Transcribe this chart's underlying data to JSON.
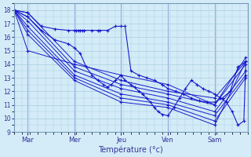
{
  "title": "",
  "xlabel": "Température (°c)",
  "ylabel": "",
  "bg_color": "#d4ecf7",
  "grid_color": "#a8cce0",
  "line_color": "#1a1acc",
  "ylim": [
    9,
    18.5
  ],
  "xlim": [
    0,
    120
  ],
  "day_labels": [
    "Mar",
    "Mer",
    "Jeu",
    "Ven",
    "Sam"
  ],
  "day_positions": [
    7,
    31,
    55,
    79,
    103
  ],
  "series": [
    {
      "x": [
        0,
        7,
        31,
        55,
        79,
        103,
        119
      ],
      "y": [
        18.0,
        17.8,
        14.2,
        12.8,
        12.0,
        11.5,
        14.2
      ]
    },
    {
      "x": [
        0,
        7,
        31,
        55,
        79,
        103,
        119
      ],
      "y": [
        18.0,
        17.5,
        13.8,
        12.5,
        11.8,
        11.0,
        14.0
      ]
    },
    {
      "x": [
        0,
        7,
        31,
        55,
        79,
        103,
        119
      ],
      "y": [
        18.0,
        17.2,
        13.5,
        12.2,
        11.5,
        10.5,
        13.5
      ]
    },
    {
      "x": [
        0,
        7,
        31,
        55,
        79,
        103,
        119
      ],
      "y": [
        18.0,
        16.8,
        13.2,
        11.8,
        11.2,
        10.2,
        13.2
      ]
    },
    {
      "x": [
        0,
        7,
        31,
        55,
        79,
        103,
        119
      ],
      "y": [
        18.0,
        16.5,
        13.0,
        11.5,
        11.0,
        9.8,
        13.0
      ]
    },
    {
      "x": [
        0,
        7,
        31,
        55,
        79,
        103,
        119
      ],
      "y": [
        18.0,
        15.0,
        14.0,
        13.2,
        12.5,
        11.0,
        14.5
      ]
    },
    {
      "x": [
        0,
        7,
        31,
        55,
        79,
        103,
        119
      ],
      "y": [
        18.0,
        16.2,
        12.8,
        11.2,
        10.8,
        9.5,
        14.2
      ]
    }
  ],
  "special_series": {
    "x": [
      0,
      7,
      14,
      21,
      28,
      31,
      32,
      33,
      34,
      35,
      36,
      40,
      43,
      44,
      48,
      52,
      55,
      57,
      60,
      64,
      68,
      72,
      76,
      79,
      83,
      87,
      91,
      95,
      99,
      103,
      107,
      111,
      115,
      119
    ],
    "y": [
      18.0,
      17.8,
      16.8,
      16.6,
      16.5,
      16.5,
      16.5,
      16.5,
      16.5,
      16.5,
      16.5,
      16.5,
      16.5,
      16.5,
      16.5,
      16.8,
      16.8,
      16.8,
      13.5,
      13.2,
      13.0,
      12.8,
      12.5,
      12.2,
      12.0,
      11.8,
      11.5,
      11.3,
      11.2,
      11.2,
      11.5,
      12.0,
      13.8,
      14.2
    ]
  },
  "zigzag_series": {
    "x": [
      0,
      7,
      14,
      21,
      28,
      31,
      34,
      37,
      40,
      43,
      46,
      48,
      50,
      52,
      55,
      57,
      60,
      62,
      64,
      66,
      68,
      70,
      72,
      74,
      76,
      79,
      82,
      85,
      88,
      91,
      94,
      97,
      100,
      103,
      106,
      109,
      112,
      115,
      118,
      119
    ],
    "y": [
      18.0,
      17.5,
      16.5,
      15.8,
      15.5,
      15.2,
      14.8,
      13.8,
      13.2,
      12.8,
      12.5,
      12.3,
      12.5,
      12.8,
      13.2,
      12.8,
      12.5,
      12.3,
      12.0,
      11.8,
      11.5,
      11.2,
      10.8,
      10.5,
      10.3,
      10.2,
      10.8,
      11.5,
      12.2,
      12.8,
      12.5,
      12.2,
      12.0,
      11.8,
      11.5,
      11.2,
      10.5,
      9.5,
      9.8,
      14.2
    ]
  }
}
